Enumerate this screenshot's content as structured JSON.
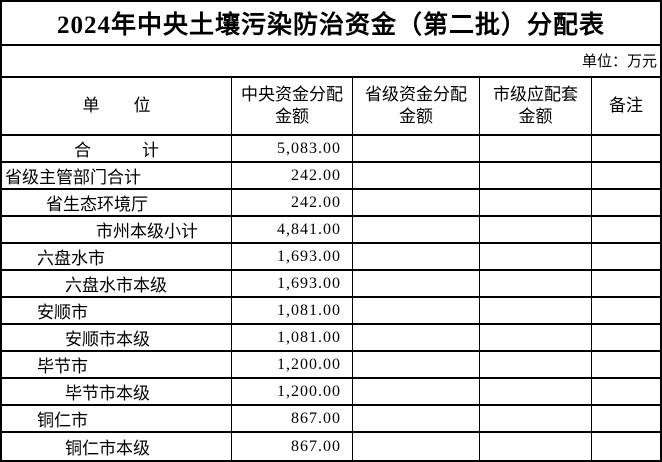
{
  "title": "2024年中央土壤污染防治资金（第二批）分配表",
  "unit_note": "单位：万元",
  "accent_colors": {
    "border": "#000000",
    "background": "#ffffff",
    "text": "#000000"
  },
  "table": {
    "headers": {
      "unit": "单　　位",
      "central": "中央资金分配\n金额",
      "provincial": "省级资金分配\n金额",
      "municipal": "市级应配套\n金额",
      "remark": "备注"
    },
    "rows": [
      {
        "unit": "合　　　计",
        "central": "5,083.00",
        "provincial": "",
        "municipal": "",
        "remark": ""
      },
      {
        "unit": "省级主管部门合计",
        "central": "242.00",
        "provincial": "",
        "municipal": "",
        "remark": ""
      },
      {
        "unit": "省生态环境厅",
        "central": "242.00",
        "provincial": "",
        "municipal": "",
        "remark": ""
      },
      {
        "unit": "市州本级小计",
        "central": "4,841.00",
        "provincial": "",
        "municipal": "",
        "remark": ""
      },
      {
        "unit": "六盘水市",
        "central": "1,693.00",
        "provincial": "",
        "municipal": "",
        "remark": ""
      },
      {
        "unit": "六盘水市本级",
        "central": "1,693.00",
        "provincial": "",
        "municipal": "",
        "remark": ""
      },
      {
        "unit": "安顺市",
        "central": "1,081.00",
        "provincial": "",
        "municipal": "",
        "remark": ""
      },
      {
        "unit": "安顺市本级",
        "central": "1,081.00",
        "provincial": "",
        "municipal": "",
        "remark": ""
      },
      {
        "unit": "毕节市",
        "central": "1,200.00",
        "provincial": "",
        "municipal": "",
        "remark": ""
      },
      {
        "unit": "毕节市本级",
        "central": "1,200.00",
        "provincial": "",
        "municipal": "",
        "remark": ""
      },
      {
        "unit": "铜仁市",
        "central": "867.00",
        "provincial": "",
        "municipal": "",
        "remark": ""
      },
      {
        "unit": "铜仁市本级",
        "central": "867.00",
        "provincial": "",
        "municipal": "",
        "remark": ""
      }
    ]
  }
}
